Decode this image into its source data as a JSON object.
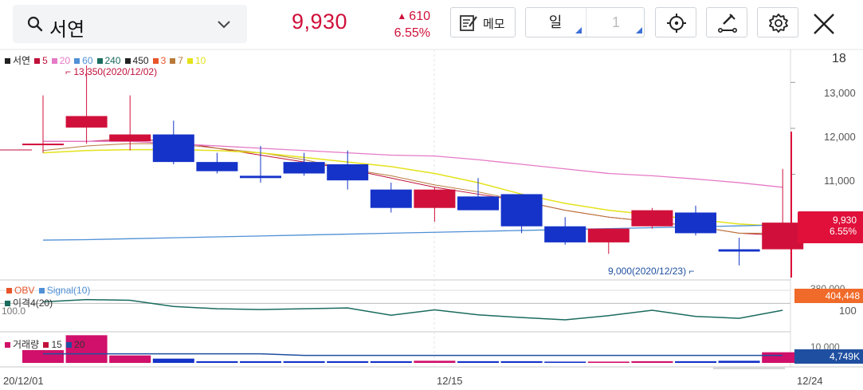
{
  "header": {
    "stock_name": "서연",
    "price": "9,930",
    "change_amount": "610",
    "change_percent": "6.55%",
    "memo_label": "메모",
    "period_unit": "일",
    "period_value": "1",
    "up_color": "#d0103a",
    "down_color": "#1533c9"
  },
  "legend": {
    "price_items": [
      {
        "label": "서연",
        "color": "#222222"
      },
      {
        "label": "5",
        "color": "#c0103a"
      },
      {
        "label": "20",
        "color": "#e57ac6"
      },
      {
        "label": "60",
        "color": "#4f90d6"
      },
      {
        "label": "240",
        "color": "#1a6b5e"
      },
      {
        "label": "450",
        "color": "#222222"
      },
      {
        "label": "3",
        "color": "#e8542a"
      },
      {
        "label": "7",
        "color": "#b87a3a"
      },
      {
        "label": "10",
        "color": "#e4e21a"
      }
    ],
    "obv": "OBV",
    "signal": "Signal(10)",
    "disparity": "이격4(20)",
    "volume": "거래량",
    "vol_ma1": "15",
    "vol_ma2": "20"
  },
  "annotations": {
    "high": "13,350(2020/12/02)",
    "low": "9,000(2020/12/23)",
    "disparity_ref": "100.0"
  },
  "right_axis": {
    "top": "18",
    "price_ticks": [
      "13,000",
      "12,000",
      "11,000"
    ],
    "price_tag": "9,930",
    "pct_tag": "6.55%",
    "obv_tick": "380,000",
    "obv_tag": "404,448",
    "disparity_tick": "100",
    "vol_tick": "10,000",
    "vol_tag": "4,749K"
  },
  "x_labels": [
    "20/12/01",
    "12/15",
    "12/24"
  ],
  "chart_data": {
    "type": "candlestick",
    "y_range": [
      8700,
      13700
    ],
    "candles": [
      {
        "o": 11650,
        "h": 12700,
        "l": 11450,
        "c": 11650
      },
      {
        "o": 12000,
        "h": 13350,
        "l": 11650,
        "c": 12250
      },
      {
        "o": 11700,
        "h": 12700,
        "l": 11500,
        "c": 11850
      },
      {
        "o": 11850,
        "h": 12150,
        "l": 11200,
        "c": 11250
      },
      {
        "o": 11250,
        "h": 11450,
        "l": 11000,
        "c": 11050
      },
      {
        "o": 10950,
        "h": 11600,
        "l": 10800,
        "c": 10900
      },
      {
        "o": 11250,
        "h": 11450,
        "l": 10950,
        "c": 11000
      },
      {
        "o": 11200,
        "h": 11500,
        "l": 10650,
        "c": 10850
      },
      {
        "o": 10650,
        "h": 10800,
        "l": 10150,
        "c": 10250
      },
      {
        "o": 10250,
        "h": 10700,
        "l": 9950,
        "c": 10650
      },
      {
        "o": 10500,
        "h": 10900,
        "l": 10200,
        "c": 10200
      },
      {
        "o": 10550,
        "h": 10550,
        "l": 9700,
        "c": 9850
      },
      {
        "o": 9850,
        "h": 10050,
        "l": 9450,
        "c": 9500
      },
      {
        "o": 9500,
        "h": 9800,
        "l": 9250,
        "c": 9800
      },
      {
        "o": 9850,
        "h": 10250,
        "l": 9800,
        "c": 10200
      },
      {
        "o": 10150,
        "h": 10300,
        "l": 9650,
        "c": 9700
      },
      {
        "o": 9350,
        "h": 9600,
        "l": 9000,
        "c": 9300
      },
      {
        "o": 9350,
        "h": 11100,
        "l": 9350,
        "c": 9930
      }
    ],
    "ma": {
      "5": [
        11700,
        11700,
        11750,
        11700,
        11550,
        11400,
        11250,
        11100,
        10900,
        10700,
        10550,
        10400,
        10200,
        10050,
        9950,
        9850,
        9700,
        9650
      ],
      "20": [
        11700,
        11700,
        11700,
        11650,
        11600,
        11550,
        11500,
        11450,
        11400,
        11380,
        11300,
        11200,
        11100,
        11000,
        10950,
        10880,
        10800,
        10700
      ],
      "60": [
        9550,
        9560,
        9580,
        9600,
        9620,
        9640,
        9660,
        9680,
        9700,
        9720,
        9740,
        9760,
        9780,
        9800,
        9820,
        9840,
        9860,
        9880
      ],
      "10": [
        11450,
        11500,
        11520,
        11520,
        11500,
        11450,
        11350,
        11250,
        11150,
        11000,
        10800,
        10550,
        10350,
        10200,
        10100,
        10000,
        9900,
        9850
      ],
      "7": [
        11500,
        11600,
        11650,
        11650,
        11550,
        11450,
        11300,
        11100,
        10950,
        10750,
        10600,
        10400,
        10200,
        10050,
        9950,
        9850,
        9700,
        9700
      ]
    },
    "disparity": [
      100.4,
      101.0,
      100.8,
      99.2,
      98.6,
      98.4,
      98.6,
      98.8,
      96.9,
      98.3,
      97.0,
      96.3,
      95.7,
      96.8,
      98.2,
      96.6,
      96.1,
      98.2
    ],
    "volume": [
      60,
      130,
      35,
      20,
      8,
      8,
      8,
      8,
      8,
      10,
      8,
      8,
      6,
      6,
      8,
      8,
      10,
      50
    ]
  }
}
